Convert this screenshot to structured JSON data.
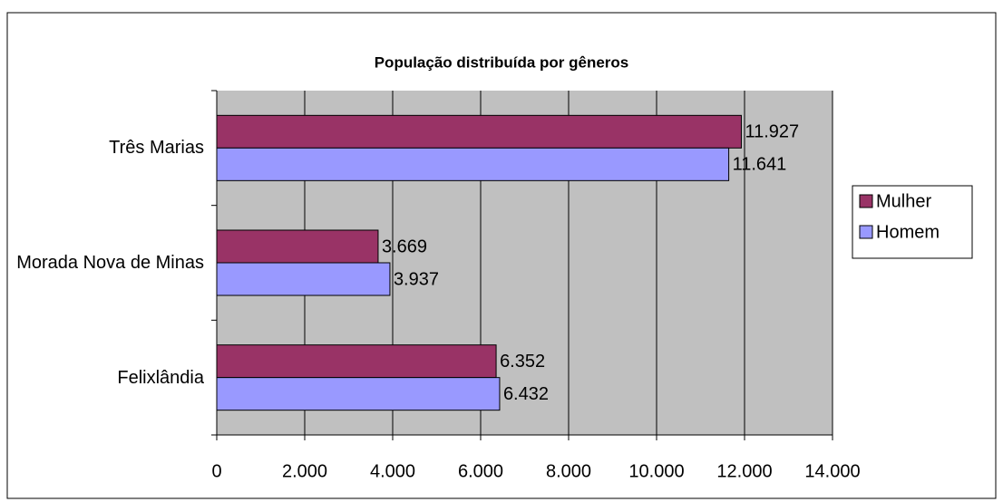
{
  "chart_data": {
    "type": "barh",
    "title": "População distribuída por gêneros",
    "categories": [
      "Três Marias",
      "Morada Nova de Minas",
      "Felixlândia"
    ],
    "series": [
      {
        "name": "Mulher",
        "color": "#993366",
        "values": [
          11927,
          3669,
          6352
        ],
        "value_labels": [
          "11.927",
          "3.669",
          "6.352"
        ]
      },
      {
        "name": "Homem",
        "color": "#9999ff",
        "values": [
          11641,
          3937,
          6432
        ],
        "value_labels": [
          "11.641",
          "3.937",
          "6.432"
        ]
      }
    ],
    "xlim": [
      0,
      14000
    ],
    "xticks": [
      0,
      {
        "value": 2000,
        "label": "2.000"
      },
      {
        "value": 4000,
        "label": "4.000"
      },
      {
        "value": 6000,
        "label": "6.000"
      },
      {
        "value": 8000,
        "label": "8.000"
      },
      {
        "value": 10000,
        "label": "10.000"
      },
      {
        "value": 12000,
        "label": "12.000"
      },
      {
        "value": 14000,
        "label": "14.000"
      }
    ],
    "grid": true,
    "legend": "right"
  }
}
